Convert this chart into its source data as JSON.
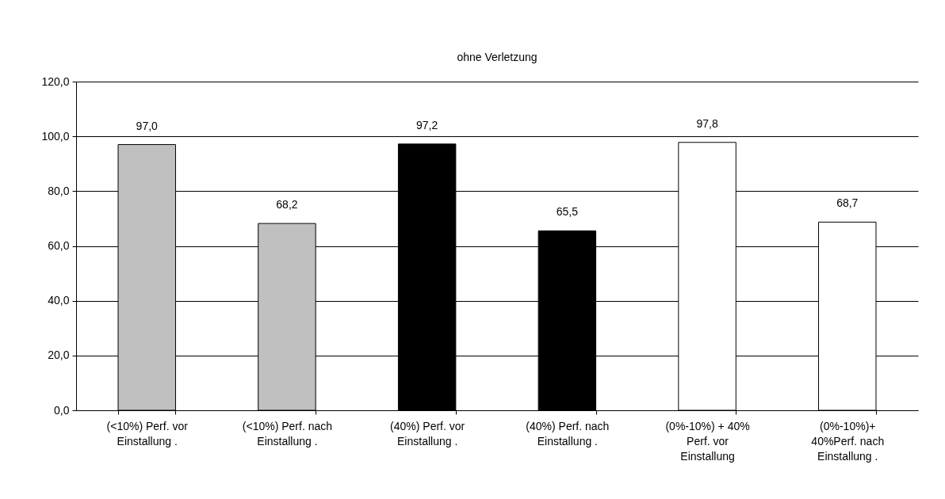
{
  "chart_data": {
    "type": "bar",
    "title": "ohne Verletzung",
    "categories": [
      "(<10%) Perf. vor Einstallung .",
      "(<10%) Perf. nach Einstallung .",
      "(40%) Perf. vor Einstallung .",
      "(40%) Perf. nach Einstallung .",
      "(0%-10%) + 40% Perf. vor Einstallung",
      "(0%-10%)+ 40%Perf. nach Einstallung ."
    ],
    "values": [
      97.0,
      68.2,
      97.2,
      65.5,
      97.8,
      68.7
    ],
    "colors": [
      "#c0c0c0",
      "#c0c0c0",
      "#000000",
      "#000000",
      "#ffffff",
      "#ffffff"
    ],
    "value_labels": [
      "97,0",
      "68,2",
      "97,2",
      "65,5",
      "97,8",
      "68,7"
    ],
    "ylim": [
      0,
      120
    ],
    "yticks": [
      {
        "value": 0,
        "label": "0,0"
      },
      {
        "value": 20,
        "label": "20,0"
      },
      {
        "value": 40,
        "label": "40,0"
      },
      {
        "value": 60,
        "label": "60,0"
      },
      {
        "value": 80,
        "label": "80,0"
      },
      {
        "value": 100,
        "label": "100,0"
      },
      {
        "value": 120,
        "label": "120,0"
      }
    ],
    "grid": "y"
  }
}
